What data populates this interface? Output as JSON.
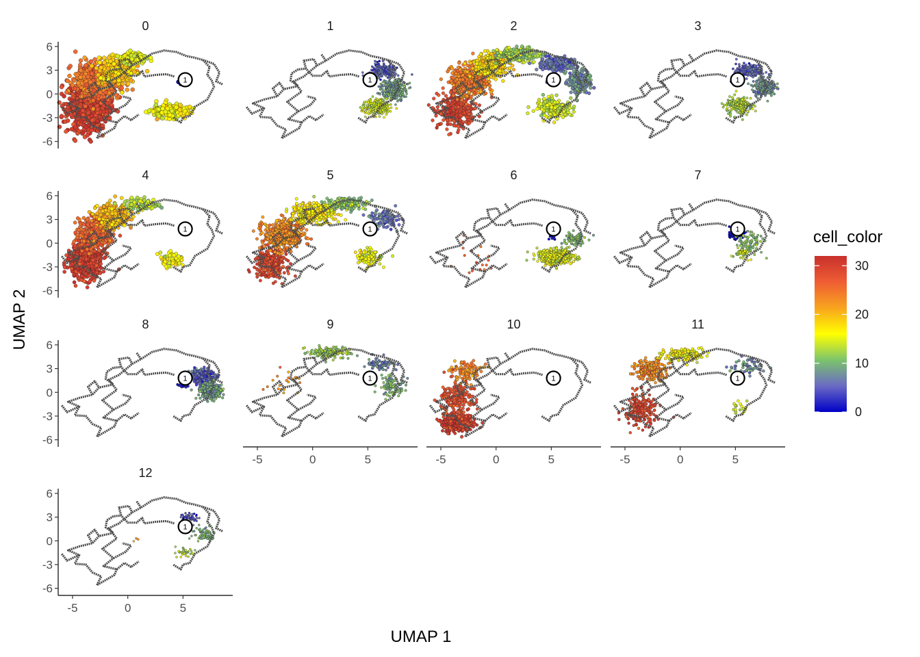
{
  "chart_data": {
    "type": "scatter",
    "subtype": "faceted UMAP embedding with trajectory overlay",
    "xlabel": "UMAP 1",
    "ylabel": "UMAP 2",
    "xlim": [
      -6.3,
      9.5
    ],
    "ylim": [
      -6.9,
      6.6
    ],
    "x_ticks": [
      -5,
      0,
      5
    ],
    "y_ticks": [
      6,
      3,
      0,
      -3,
      -6
    ],
    "x_tick_labels": [
      "-5",
      "0",
      "5"
    ],
    "y_tick_labels": [
      "6",
      "3",
      "0",
      "-3",
      "-6"
    ],
    "grid": false,
    "facets": [
      "0",
      "1",
      "2",
      "3",
      "4",
      "5",
      "6",
      "7",
      "8",
      "9",
      "10",
      "11",
      "12"
    ],
    "facet_columns": 4,
    "legend": {
      "title": "cell_color",
      "type": "colorbar",
      "placement": "right",
      "range": [
        0,
        32
      ],
      "ticks": [
        0,
        10,
        20,
        30
      ],
      "tick_labels": [
        "0",
        "10",
        "20",
        "30"
      ],
      "colors": [
        "#0000c8",
        "#6a6ac4",
        "#7cc46c",
        "#ffff00",
        "#f8a41e",
        "#ef5d34",
        "#c8302c"
      ]
    },
    "trajectory_color": "#4d4d4d",
    "root_node": {
      "label": "1",
      "x": 5.2,
      "y": 1.8
    },
    "trajectory_path": [
      [
        4.2,
        2.2
      ],
      [
        3.5,
        2.5
      ],
      [
        2.5,
        2.4
      ],
      [
        1.5,
        2.2
      ],
      [
        1.3,
        2.9
      ],
      [
        0.8,
        2.3
      ],
      [
        0,
        2.3
      ],
      [
        -0.6,
        3.2
      ],
      [
        -1.3,
        3.1
      ],
      [
        -1.9,
        2.6
      ],
      [
        -2.0,
        1.7
      ],
      [
        -1.3,
        1.0
      ],
      [
        -2.6,
        0.6
      ],
      [
        -3.2,
        -0.3
      ],
      [
        -4.4,
        -0.7
      ],
      [
        -5.4,
        -1.2
      ],
      [
        -4.4,
        -1.8
      ],
      [
        -4.8,
        -2.9
      ],
      [
        -3.8,
        -3.0
      ],
      [
        -3.2,
        -4.0
      ],
      [
        -2.4,
        -4.5
      ],
      [
        -2.8,
        -5.6
      ],
      [
        -1.8,
        -4.8
      ],
      [
        -1.2,
        -4.3
      ],
      [
        -1.0,
        -3.6
      ],
      [
        -2.2,
        -3.2
      ],
      [
        -1.3,
        -2.2
      ],
      [
        -2.3,
        -1.0
      ],
      [
        -1.0,
        0.3
      ],
      [
        -1.7,
        1.6
      ],
      [
        -0.8,
        2.2
      ],
      [
        0.4,
        3.6
      ],
      [
        1.2,
        4.2
      ],
      [
        2.2,
        5.1
      ],
      [
        3.3,
        5.5
      ],
      [
        4.4,
        5.3
      ],
      [
        5.3,
        4.8
      ],
      [
        6.0,
        4.6
      ],
      [
        6.8,
        4.3
      ],
      [
        7.4,
        3.4
      ],
      [
        7.2,
        2.4
      ],
      [
        7.6,
        1.7
      ],
      [
        7.8,
        0.9
      ],
      [
        7.2,
        -0.7
      ],
      [
        6.6,
        -1.2
      ],
      [
        6.1,
        -1.6
      ],
      [
        5.6,
        -2.8
      ],
      [
        5.0,
        -3.0
      ],
      [
        4.8,
        -3.6
      ],
      [
        4.1,
        -3.0
      ]
    ],
    "trajectory_branches": [
      [
        [
          -0.6,
          3.2
        ],
        [
          -0.8,
          4.2
        ],
        [
          0.1,
          4.4
        ],
        [
          0.4,
          3.6
        ]
      ],
      [
        [
          -3.2,
          -0.3
        ],
        [
          -3.6,
          0.7
        ],
        [
          -3.0,
          1.4
        ],
        [
          -2.6,
          0.6
        ]
      ],
      [
        [
          -4.4,
          -1.8
        ],
        [
          -5.5,
          -2.5
        ],
        [
          -6.0,
          -1.6
        ]
      ],
      [
        [
          -1.0,
          -3.6
        ],
        [
          -0.3,
          -2.8
        ],
        [
          0.3,
          -3.3
        ],
        [
          1.0,
          -2.6
        ]
      ],
      [
        [
          1.2,
          4.2
        ],
        [
          0.8,
          5.0
        ]
      ],
      [
        [
          6.8,
          4.3
        ],
        [
          7.8,
          3.8
        ],
        [
          8.3,
          2.7
        ],
        [
          8.0,
          1.6
        ],
        [
          8.6,
          1.2
        ]
      ],
      [
        [
          -1.3,
          -2.2
        ],
        [
          -0.2,
          -1.4
        ],
        [
          0.3,
          -0.6
        ],
        [
          -0.5,
          -0.3
        ]
      ]
    ],
    "point_sizes_by_facet": [
      3,
      1.6,
      2.4,
      1.7,
      2.6,
      2.2,
      1.8,
      1.7,
      1.9,
      1.8,
      2.2,
      2.0,
      1.5
    ],
    "facet_regions": [
      {
        "facet": "0",
        "clusters": [
          {
            "cx": -3.6,
            "cy": -1.6,
            "sx": 1.3,
            "sy": 2.1,
            "n": 900,
            "c": 30
          },
          {
            "cx": -2.8,
            "cy": 1.6,
            "sx": 1.4,
            "sy": 1.5,
            "n": 600,
            "c": 25
          },
          {
            "cx": -1.0,
            "cy": 2.8,
            "sx": 1.1,
            "sy": 1.2,
            "n": 320,
            "c": 19
          },
          {
            "cx": 0.6,
            "cy": 4.6,
            "sx": 0.8,
            "sy": 0.5,
            "n": 90,
            "c": 15
          },
          {
            "cx": 3.8,
            "cy": -2.2,
            "sx": 1.1,
            "sy": 0.6,
            "n": 220,
            "c": 16
          },
          {
            "cx": 5.0,
            "cy": 1.4,
            "sx": 0.3,
            "sy": 0.2,
            "n": 10,
            "c": 1
          }
        ]
      },
      {
        "facet": "1",
        "clusters": [
          {
            "cx": 6.3,
            "cy": 2.9,
            "sx": 0.9,
            "sy": 0.7,
            "n": 220,
            "c": 5
          },
          {
            "cx": 7.4,
            "cy": 0.5,
            "sx": 0.8,
            "sy": 0.9,
            "n": 300,
            "c": 9
          },
          {
            "cx": 5.8,
            "cy": -1.7,
            "sx": 0.9,
            "sy": 0.7,
            "n": 240,
            "c": 14
          },
          {
            "cx": 5.2,
            "cy": 1.5,
            "sx": 0.2,
            "sy": 0.2,
            "n": 10,
            "c": 1
          }
        ]
      },
      {
        "facet": "2",
        "clusters": [
          {
            "cx": -3.6,
            "cy": -2.2,
            "sx": 1.2,
            "sy": 1.5,
            "n": 300,
            "c": 29
          },
          {
            "cx": -2.4,
            "cy": 1.6,
            "sx": 1.2,
            "sy": 1.4,
            "n": 400,
            "c": 24
          },
          {
            "cx": -0.5,
            "cy": 3.6,
            "sx": 1.1,
            "sy": 1.0,
            "n": 320,
            "c": 18
          },
          {
            "cx": 2.0,
            "cy": 5.0,
            "sx": 1.3,
            "sy": 0.6,
            "n": 240,
            "c": 12
          },
          {
            "cx": 5.5,
            "cy": 3.8,
            "sx": 1.2,
            "sy": 0.6,
            "n": 220,
            "c": 6
          },
          {
            "cx": 7.5,
            "cy": 1.5,
            "sx": 0.7,
            "sy": 1.0,
            "n": 220,
            "c": 8
          },
          {
            "cx": 5.2,
            "cy": -1.7,
            "sx": 1.2,
            "sy": 0.8,
            "n": 220,
            "c": 14
          },
          {
            "cx": 5.0,
            "cy": 1.7,
            "sx": 0.3,
            "sy": 0.3,
            "n": 24,
            "c": 1
          }
        ]
      },
      {
        "facet": "3",
        "clusters": [
          {
            "cx": 6.2,
            "cy": 2.9,
            "sx": 0.8,
            "sy": 0.6,
            "n": 200,
            "c": 5
          },
          {
            "cx": 7.6,
            "cy": 0.8,
            "sx": 0.7,
            "sy": 0.8,
            "n": 220,
            "c": 8
          },
          {
            "cx": 5.3,
            "cy": -1.5,
            "sx": 0.8,
            "sy": 0.8,
            "n": 220,
            "c": 13
          },
          {
            "cx": 5.0,
            "cy": 1.5,
            "sx": 0.3,
            "sy": 0.3,
            "n": 20,
            "c": 1
          }
        ]
      },
      {
        "facet": "4",
        "clusters": [
          {
            "cx": -3.8,
            "cy": -2.3,
            "sx": 1.0,
            "sy": 1.6,
            "n": 600,
            "c": 30
          },
          {
            "cx": -2.9,
            "cy": 1.2,
            "sx": 1.1,
            "sy": 1.3,
            "n": 450,
            "c": 26
          },
          {
            "cx": -1.4,
            "cy": 3.4,
            "sx": 1.0,
            "sy": 1.0,
            "n": 300,
            "c": 20
          },
          {
            "cx": 1.2,
            "cy": 4.9,
            "sx": 1.1,
            "sy": 0.5,
            "n": 100,
            "c": 13
          },
          {
            "cx": 4.0,
            "cy": -2.0,
            "sx": 0.8,
            "sy": 0.7,
            "n": 60,
            "c": 16
          }
        ]
      },
      {
        "facet": "5",
        "clusters": [
          {
            "cx": -3.8,
            "cy": -2.6,
            "sx": 1.0,
            "sy": 1.3,
            "n": 300,
            "c": 29
          },
          {
            "cx": -2.6,
            "cy": 1.2,
            "sx": 1.3,
            "sy": 1.3,
            "n": 450,
            "c": 23
          },
          {
            "cx": 0.0,
            "cy": 3.8,
            "sx": 1.4,
            "sy": 0.9,
            "n": 320,
            "c": 17
          },
          {
            "cx": 3.2,
            "cy": 5.0,
            "sx": 1.3,
            "sy": 0.6,
            "n": 160,
            "c": 11
          },
          {
            "cx": 6.5,
            "cy": 3.0,
            "sx": 0.9,
            "sy": 0.9,
            "n": 90,
            "c": 6
          },
          {
            "cx": 5.0,
            "cy": -1.8,
            "sx": 0.9,
            "sy": 0.7,
            "n": 110,
            "c": 15
          }
        ]
      },
      {
        "facet": "6",
        "clusters": [
          {
            "cx": 5.4,
            "cy": -1.7,
            "sx": 1.2,
            "sy": 0.7,
            "n": 380,
            "c": 15
          },
          {
            "cx": 7.2,
            "cy": 0.5,
            "sx": 0.7,
            "sy": 0.6,
            "n": 80,
            "c": 10
          },
          {
            "cx": -2.0,
            "cy": -2.2,
            "sx": 2.0,
            "sy": 2.0,
            "n": 18,
            "c": 26
          },
          {
            "cx": 5.0,
            "cy": 0.8,
            "sx": 0.3,
            "sy": 0.3,
            "n": 10,
            "c": 1
          }
        ]
      },
      {
        "facet": "7",
        "clusters": [
          {
            "cx": 5.1,
            "cy": 1.2,
            "sx": 0.4,
            "sy": 0.4,
            "n": 160,
            "c": 0
          },
          {
            "cx": 6.2,
            "cy": 0.0,
            "sx": 0.9,
            "sy": 0.9,
            "n": 90,
            "c": 11
          },
          {
            "cx": 5.6,
            "cy": -1.3,
            "sx": 0.5,
            "sy": 0.5,
            "n": 40,
            "c": 14
          }
        ]
      },
      {
        "facet": "8",
        "clusters": [
          {
            "cx": 6.7,
            "cy": 2.0,
            "sx": 0.8,
            "sy": 0.7,
            "n": 240,
            "c": 5
          },
          {
            "cx": 7.4,
            "cy": 0.2,
            "sx": 0.8,
            "sy": 0.8,
            "n": 220,
            "c": 9
          },
          {
            "cx": 5.0,
            "cy": 1.0,
            "sx": 0.3,
            "sy": 0.3,
            "n": 30,
            "c": 1
          }
        ]
      },
      {
        "facet": "9",
        "clusters": [
          {
            "cx": 1.5,
            "cy": 5.0,
            "sx": 1.3,
            "sy": 0.5,
            "n": 160,
            "c": 12
          },
          {
            "cx": 6.2,
            "cy": 3.6,
            "sx": 1.0,
            "sy": 0.6,
            "n": 80,
            "c": 7
          },
          {
            "cx": 7.2,
            "cy": 0.8,
            "sx": 0.8,
            "sy": 0.8,
            "n": 100,
            "c": 10
          },
          {
            "cx": -2.5,
            "cy": 1.5,
            "sx": 1.5,
            "sy": 1.5,
            "n": 20,
            "c": 22
          }
        ]
      },
      {
        "facet": "10",
        "clusters": [
          {
            "cx": -3.5,
            "cy": -3.9,
            "sx": 0.9,
            "sy": 0.8,
            "n": 500,
            "c": 30
          },
          {
            "cx": -3.6,
            "cy": -0.8,
            "sx": 1.0,
            "sy": 1.6,
            "n": 200,
            "c": 28
          },
          {
            "cx": -2.6,
            "cy": 2.6,
            "sx": 1.0,
            "sy": 1.0,
            "n": 100,
            "c": 23
          }
        ]
      },
      {
        "facet": "11",
        "clusters": [
          {
            "cx": -3.6,
            "cy": -2.2,
            "sx": 1.0,
            "sy": 1.5,
            "n": 220,
            "c": 29
          },
          {
            "cx": -2.6,
            "cy": 2.8,
            "sx": 1.0,
            "sy": 1.0,
            "n": 200,
            "c": 23
          },
          {
            "cx": 0.4,
            "cy": 4.7,
            "sx": 1.5,
            "sy": 0.6,
            "n": 140,
            "c": 16
          },
          {
            "cx": 6.0,
            "cy": 3.2,
            "sx": 1.1,
            "sy": 0.7,
            "n": 60,
            "c": 7
          },
          {
            "cx": 5.2,
            "cy": -1.8,
            "sx": 0.6,
            "sy": 0.5,
            "n": 20,
            "c": 14
          }
        ]
      },
      {
        "facet": "12",
        "clusters": [
          {
            "cx": 5.6,
            "cy": 2.9,
            "sx": 0.6,
            "sy": 0.4,
            "n": 50,
            "c": 4
          },
          {
            "cx": 7.0,
            "cy": 0.9,
            "sx": 0.8,
            "sy": 0.8,
            "n": 70,
            "c": 10
          },
          {
            "cx": 5.2,
            "cy": -1.5,
            "sx": 0.6,
            "sy": 0.5,
            "n": 30,
            "c": 13
          },
          {
            "cx": 1.0,
            "cy": 0.0,
            "sx": 0.4,
            "sy": 0.4,
            "n": 3,
            "c": 22
          }
        ]
      }
    ]
  }
}
